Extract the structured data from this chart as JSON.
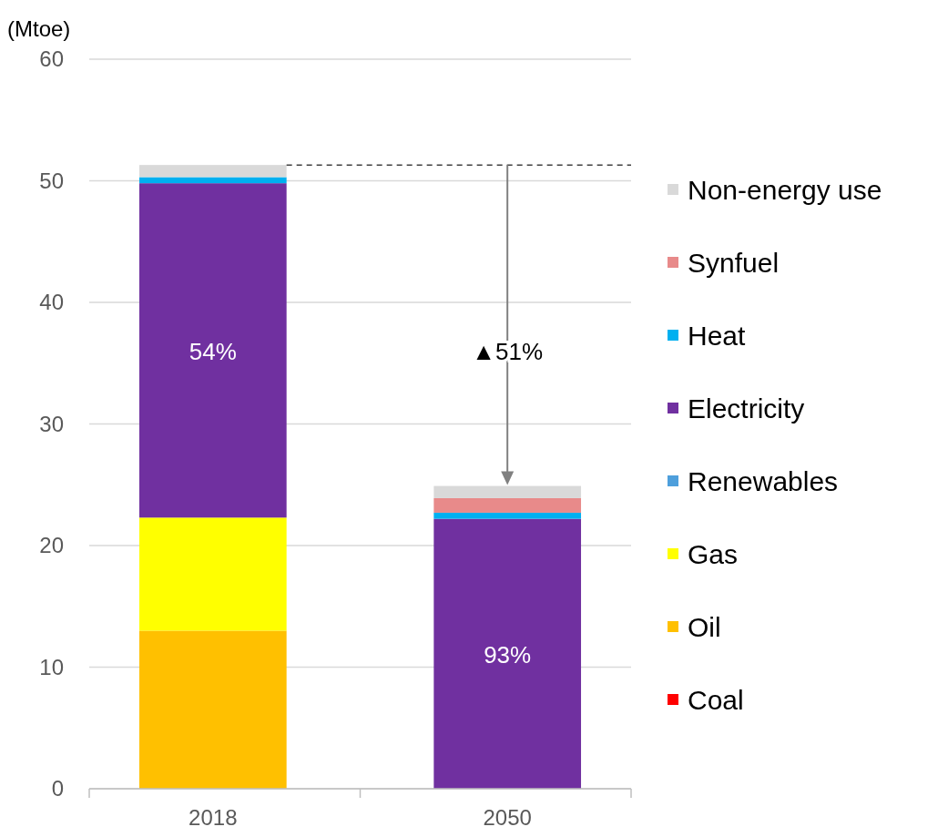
{
  "chart_data": {
    "type": "bar",
    "stacked": true,
    "ylabel": "(Mtoe)",
    "categories": [
      "2018",
      "2050"
    ],
    "series": [
      {
        "name": "Coal",
        "color": "#ff0000",
        "values": [
          0,
          0
        ]
      },
      {
        "name": "Oil",
        "color": "#ffc000",
        "values": [
          13.0,
          0
        ]
      },
      {
        "name": "Gas",
        "color": "#ffff00",
        "values": [
          9.3,
          0
        ]
      },
      {
        "name": "Renewables",
        "color": "#4e9fdc",
        "values": [
          0,
          0
        ]
      },
      {
        "name": "Electricity",
        "color": "#7030a0",
        "values": [
          27.5,
          22.2
        ]
      },
      {
        "name": "Heat",
        "color": "#00b0f0",
        "values": [
          0.5,
          0.5
        ]
      },
      {
        "name": "Synfuel",
        "color": "#e88a8a",
        "values": [
          0,
          1.2
        ]
      },
      {
        "name": "Non-energy use",
        "color": "#d9d9d9",
        "values": [
          1.0,
          1.0
        ]
      }
    ],
    "ylim": [
      0,
      60
    ],
    "yticks": [
      0,
      10,
      20,
      30,
      40,
      50,
      60
    ],
    "grid": "y",
    "legend": "right",
    "ref_lines": [
      {
        "axis": "y",
        "value": 51.3,
        "color": "#404040",
        "line_style": "dashed"
      }
    ],
    "annotations": [
      "54%",
      "93%",
      "▲51%"
    ]
  }
}
